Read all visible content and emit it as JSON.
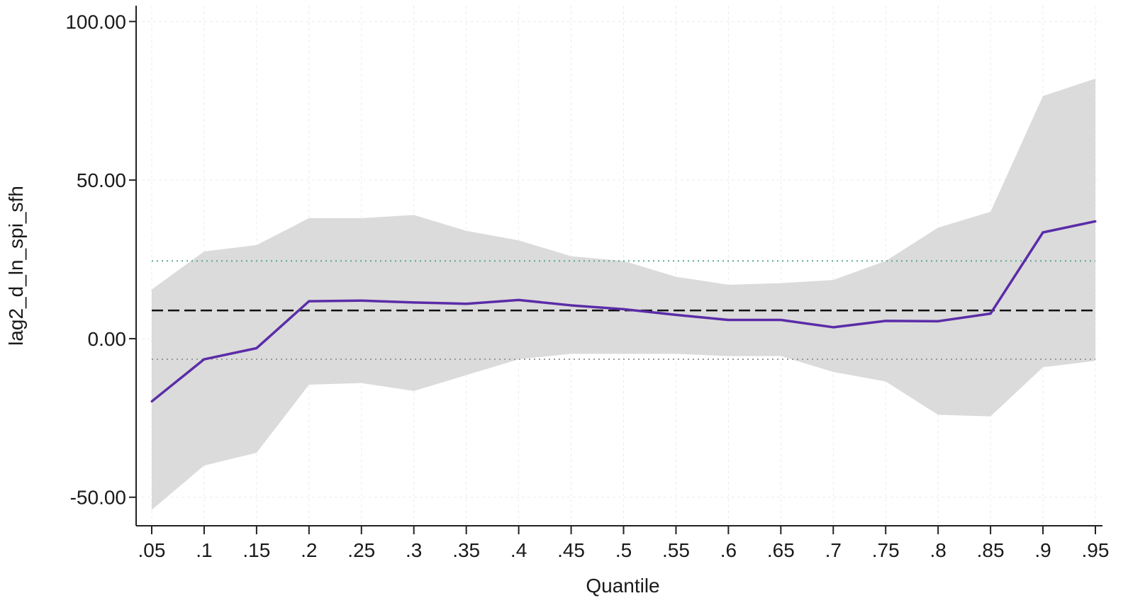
{
  "chart_data": {
    "type": "line",
    "title": "",
    "xlabel": "Quantile",
    "ylabel": "lag2_d_ln_spi_sfh",
    "x": [
      0.05,
      0.1,
      0.15,
      0.2,
      0.25,
      0.3,
      0.35,
      0.4,
      0.45,
      0.5,
      0.55,
      0.6,
      0.65,
      0.7,
      0.75,
      0.8,
      0.85,
      0.9,
      0.95
    ],
    "x_tick_labels": [
      ".05",
      ".1",
      ".15",
      ".2",
      ".25",
      ".3",
      ".35",
      ".4",
      ".45",
      ".5",
      ".55",
      ".6",
      ".65",
      ".7",
      ".75",
      ".8",
      ".85",
      ".9",
      ".95"
    ],
    "y_ticks": [
      -50,
      0,
      50,
      100
    ],
    "y_tick_labels": [
      "-50.00",
      "0.00",
      "50.00",
      "100.00"
    ],
    "ylim": [
      -59,
      105
    ],
    "xlim": [
      0.05,
      0.95
    ],
    "grid": true,
    "series": [
      {
        "type": "line",
        "color": "#5b2ca8",
        "values": [
          -19.8,
          -6.5,
          -3.0,
          11.8,
          12.0,
          11.4,
          11.0,
          12.2,
          10.5,
          9.3,
          7.5,
          5.9,
          5.9,
          3.6,
          5.6,
          5.5,
          7.9,
          33.5,
          37.0
        ]
      },
      {
        "type": "band",
        "color": "#d9d9d9",
        "lower": [
          -54.0,
          -40.0,
          -36.0,
          -14.5,
          -14.0,
          -16.5,
          -11.5,
          -6.5,
          -4.8,
          -4.8,
          -4.8,
          -5.5,
          -5.5,
          -10.5,
          -13.5,
          -24.0,
          -24.5,
          -9.0,
          -7.0
        ],
        "upper": [
          15.5,
          27.5,
          29.5,
          38.0,
          38.0,
          39.0,
          34.0,
          31.0,
          26.0,
          24.5,
          19.5,
          17.0,
          17.5,
          18.5,
          24.5,
          35.0,
          40.0,
          76.5,
          82.0
        ]
      },
      {
        "type": "hline",
        "style": "dashed",
        "color": "#111111",
        "value": 8.9
      },
      {
        "type": "hline",
        "style": "dotted",
        "color": "#5aa88f",
        "value": 24.5
      },
      {
        "type": "hline",
        "style": "dotted",
        "color": "#999999",
        "value": -6.5
      }
    ]
  }
}
